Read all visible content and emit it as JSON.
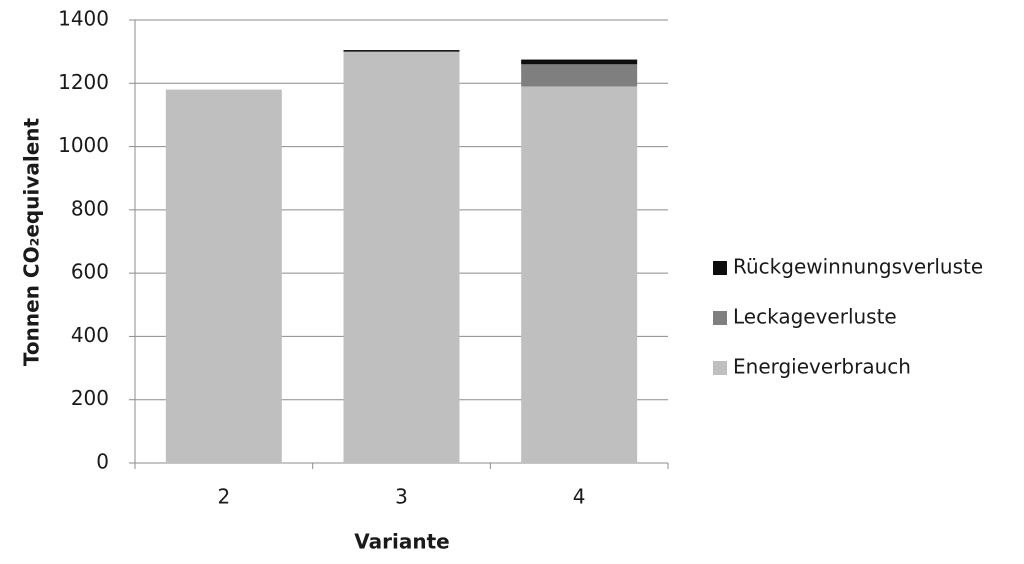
{
  "chart_data": {
    "type": "stacked_bar",
    "y_label": "Tonnen CO₂equivalent",
    "x_label": "Variante",
    "categories": [
      "2",
      "3",
      "4"
    ],
    "series": [
      {
        "name": "Energieverbrauch",
        "color": "#bfbfbf",
        "values": [
          1180,
          1300,
          1190
        ]
      },
      {
        "name": "Leckageverluste",
        "color": "#7f7f7f",
        "values": [
          0,
          0,
          70
        ]
      },
      {
        "name": "Rückgewinnungsverluste",
        "color": "#0d0d0d",
        "values": [
          0,
          5,
          15
        ]
      }
    ],
    "ylim": [
      0,
      1400
    ],
    "yticks": [
      0,
      200,
      400,
      600,
      800,
      1000,
      1200,
      1400
    ],
    "grid": true,
    "legend": "right"
  }
}
